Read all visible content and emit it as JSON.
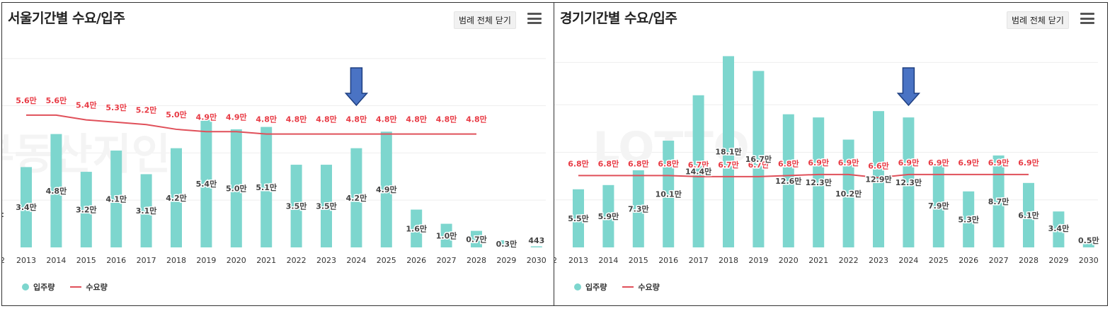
{
  "colors": {
    "bar": "#7dd6ce",
    "line": "#e0505a",
    "demand_label": "#e83b45",
    "supply_label": "#444444",
    "arrow": "#4a73c4",
    "grid": "#eeeeee"
  },
  "legend": {
    "supply": "입주량",
    "demand": "수요량"
  },
  "legend_toggle_label": "범례 전체 닫기",
  "chart_data": [
    {
      "type": "bar+line",
      "title": "서울기간별 수요/입주",
      "categories": [
        "2013",
        "2014",
        "2015",
        "2016",
        "2017",
        "2018",
        "2019",
        "2020",
        "2021",
        "2022",
        "2023",
        "2024",
        "2025",
        "2026",
        "2027",
        "2028",
        "2029",
        "2030"
      ],
      "supply_values": [
        3.4,
        4.8,
        3.2,
        4.1,
        3.1,
        4.2,
        5.4,
        5.0,
        5.1,
        3.5,
        3.5,
        4.2,
        4.9,
        1.6,
        1.0,
        0.7,
        0.3,
        0.0443
      ],
      "supply_labels": [
        "3.4만",
        "4.8만",
        "3.2만",
        "4.1만",
        "3.1만",
        "4.2만",
        "5.4만",
        "5.0만",
        "5.1만",
        "3.5만",
        "3.5만",
        "4.2만",
        "4.9만",
        "1.6만",
        "1.0만",
        "0.7만",
        "0.3만",
        "443"
      ],
      "demand_values": [
        5.6,
        5.6,
        5.4,
        5.3,
        5.2,
        5.0,
        4.9,
        4.9,
        4.8,
        4.8,
        4.8,
        4.8,
        4.8,
        4.8,
        4.8,
        4.8
      ],
      "demand_labels": [
        "5.6만",
        "5.6만",
        "5.4만",
        "5.3만",
        "5.2만",
        "5.0만",
        "4.9만",
        "4.9만",
        "4.8만",
        "4.8만",
        "4.8만",
        "4.8만",
        "4.8만",
        "4.8만",
        "4.8만",
        "4.8만"
      ],
      "ylim": [
        0,
        8.5
      ],
      "gridlines": [
        2,
        4,
        6,
        8
      ],
      "arrow_at": "2024",
      "watermark": "부동산지인",
      "left_edge_tick": "2",
      "left_edge_label": "t"
    },
    {
      "type": "bar+line",
      "title": "경기기간별 수요/입주",
      "categories": [
        "2013",
        "2014",
        "2015",
        "2016",
        "2017",
        "2018",
        "2019",
        "2020",
        "2021",
        "2022",
        "2023",
        "2024",
        "2025",
        "2026",
        "2027",
        "2028",
        "2029",
        "2030"
      ],
      "supply_values": [
        5.5,
        5.9,
        7.3,
        10.1,
        14.4,
        18.1,
        16.7,
        12.6,
        12.3,
        10.2,
        12.9,
        12.3,
        7.9,
        5.3,
        8.7,
        6.1,
        3.4,
        0.5
      ],
      "supply_labels": [
        "5.5만",
        "5.9만",
        "7.3만",
        "10.1만",
        "14.4만",
        "18.1만",
        "16.7만",
        "12.6만",
        "12.3만",
        "10.2만",
        "12.9만",
        "12.3만",
        "7.9만",
        "5.3만",
        "8.7만",
        "6.1만",
        "3.4만",
        "0.5만"
      ],
      "demand_values": [
        6.8,
        6.8,
        6.8,
        6.8,
        6.7,
        6.7,
        6.7,
        6.8,
        6.9,
        6.9,
        6.6,
        6.9,
        6.9,
        6.9,
        6.9,
        6.9
      ],
      "demand_labels": [
        "6.8만",
        "6.8만",
        "6.8만",
        "6.8만",
        "6.7만",
        "6.7만",
        "6.7만",
        "6.8만",
        "6.9만",
        "6.9만",
        "6.6만",
        "6.9만",
        "6.9만",
        "6.9만",
        "6.9만",
        "6.9만"
      ],
      "ylim": [
        0,
        19
      ],
      "gridlines": [
        4.5,
        9,
        13.5,
        17.5
      ],
      "arrow_at": "2024",
      "watermark": "LOTTO",
      "left_edge_tick": "2"
    }
  ]
}
